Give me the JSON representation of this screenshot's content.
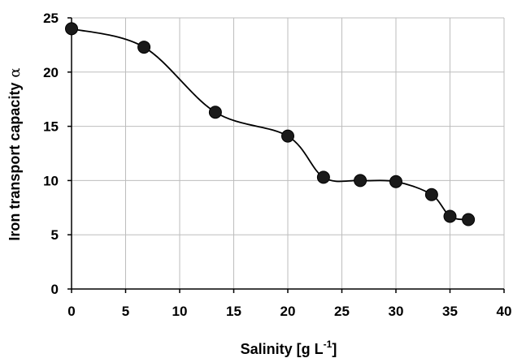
{
  "chart_data": {
    "type": "line",
    "title": "",
    "xlabel": "Salinity [g L",
    "xlabel_sup": "-1",
    "xlabel_close": "]",
    "ylabel": "Iron transport capacity",
    "ylabel_symbol": "α",
    "xlim": [
      0,
      40
    ],
    "ylim": [
      0,
      25
    ],
    "xticks": [
      "0",
      "5",
      "10",
      "15",
      "20",
      "25",
      "30",
      "35",
      "40"
    ],
    "yticks": [
      "0",
      "5",
      "10",
      "15",
      "20",
      "25"
    ],
    "grid": true,
    "smooth": true,
    "series": [
      {
        "x": [
          0,
          6.7,
          13.3,
          20,
          23.3,
          26.7,
          30,
          33.3,
          35,
          36.7
        ],
        "y": [
          24.0,
          22.3,
          16.3,
          14.1,
          10.3,
          10.0,
          9.9,
          8.7,
          6.7,
          6.4
        ],
        "color": "#1a1a1a"
      }
    ]
  }
}
